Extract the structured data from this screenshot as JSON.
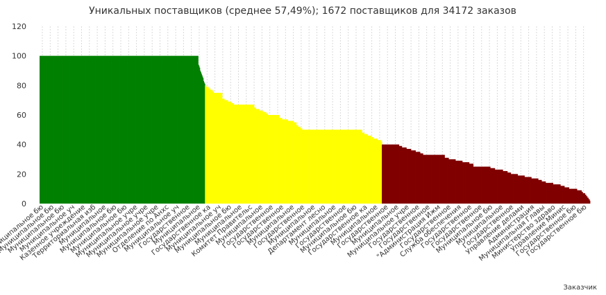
{
  "chart_data": {
    "type": "bar",
    "title": "Уникальных поставщиков (среднее 57,49%); 1672 поставщиков для 34172 заказов",
    "xlabel": "Заказчик",
    "ylabel": "",
    "ylim": [
      0,
      120
    ],
    "yticks": [
      0,
      20,
      40,
      60,
      80,
      100,
      120
    ],
    "grid": true,
    "legend": "none",
    "colors": {
      "high": "#008000",
      "mid": "#ffff00",
      "low": "#800000",
      "grid": "#d9d9d9"
    },
    "category_labels": [
      "Муниципальное бю",
      "Муниципальное бю",
      "Муниципальное бю",
      "Муниципальное уч",
      "Казенное учреждение",
      "Территориальная изб",
      "Муниципальное",
      "Муниципальное бю",
      "Муниципальное бю",
      "Муниципальное учре",
      "Муниципальное учре",
      "Муниципальное учре",
      "Отделение по Анхс",
      "Муниципальное уч",
      "Государственное",
      "Муниципальное",
      "Государственное ка",
      "Муниципальное уч",
      "Муниципальное бю",
      "Муниципальное",
      "Комитет Правительс",
      "Муниципальное",
      "Государственное",
      "Государственное",
      "Муниципальное",
      "Государственное",
      "Муниципальное",
      "Департамент лесно",
      "Муниципальное",
      "Государственное",
      "Муниципальное бю",
      "Государственное ка",
      "Муниципальное",
      "Государственное",
      "Муниципальное",
      "Муниципальное учре",
      "Государственное",
      "Государственное",
      "\"Администрация Ижм",
      "Государственное",
      "Служба обеспечения",
      "Государственное",
      "Государственное",
      "Муниципальное бю",
      "Муниципальное",
      "Государственное",
      "Управление делами",
      "Администрация",
      "Муниципальная Главы",
      "Министерство здраво",
      "Управление Минис",
      "Государственное бю",
      "Государственное бю"
    ],
    "segments": [
      {
        "x": [
          0,
          278
        ],
        "y": [
          100,
          100
        ]
      },
      {
        "x": [
          278,
          290
        ],
        "y": [
          94,
          81
        ]
      },
      {
        "x": [
          290,
          305
        ],
        "y": [
          80,
          76
        ]
      },
      {
        "x": [
          305,
          320
        ],
        "y": [
          75,
          75
        ]
      },
      {
        "x": [
          320,
          340
        ],
        "y": [
          71,
          68
        ]
      },
      {
        "x": [
          340,
          376
        ],
        "y": [
          67,
          67
        ]
      },
      {
        "x": [
          376,
          400
        ],
        "y": [
          65,
          61
        ]
      },
      {
        "x": [
          400,
          420
        ],
        "y": [
          60,
          60
        ]
      },
      {
        "x": [
          420,
          450
        ],
        "y": [
          58,
          55
        ]
      },
      {
        "x": [
          450,
          460
        ],
        "y": [
          53,
          51
        ]
      },
      {
        "x": [
          460,
          565
        ],
        "y": [
          50,
          50
        ]
      },
      {
        "x": [
          565,
          585
        ],
        "y": [
          48,
          45
        ]
      },
      {
        "x": [
          585,
          598
        ],
        "y": [
          44,
          43
        ]
      },
      {
        "x": [
          598,
          600
        ],
        "y": [
          42,
          42
        ]
      },
      {
        "x": [
          600,
          630
        ],
        "y": [
          40,
          40
        ]
      },
      {
        "x": [
          630,
          672
        ],
        "y": [
          39,
          34
        ]
      },
      {
        "x": [
          672,
          710
        ],
        "y": [
          33,
          33
        ]
      },
      {
        "x": [
          710,
          760
        ],
        "y": [
          31,
          27
        ]
      },
      {
        "x": [
          760,
          790
        ],
        "y": [
          25,
          25
        ]
      },
      {
        "x": [
          790,
          820
        ],
        "y": [
          24,
          22
        ]
      },
      {
        "x": [
          820,
          880
        ],
        "y": [
          21,
          16
        ]
      },
      {
        "x": [
          880,
          920
        ],
        "y": [
          15,
          12
        ]
      },
      {
        "x": [
          920,
          950
        ],
        "y": [
          11,
          9
        ]
      },
      {
        "x": [
          950,
          958
        ],
        "y": [
          8,
          6
        ]
      },
      {
        "x": [
          958,
          965
        ],
        "y": [
          5,
          2
        ]
      }
    ],
    "x_count": 965
  }
}
